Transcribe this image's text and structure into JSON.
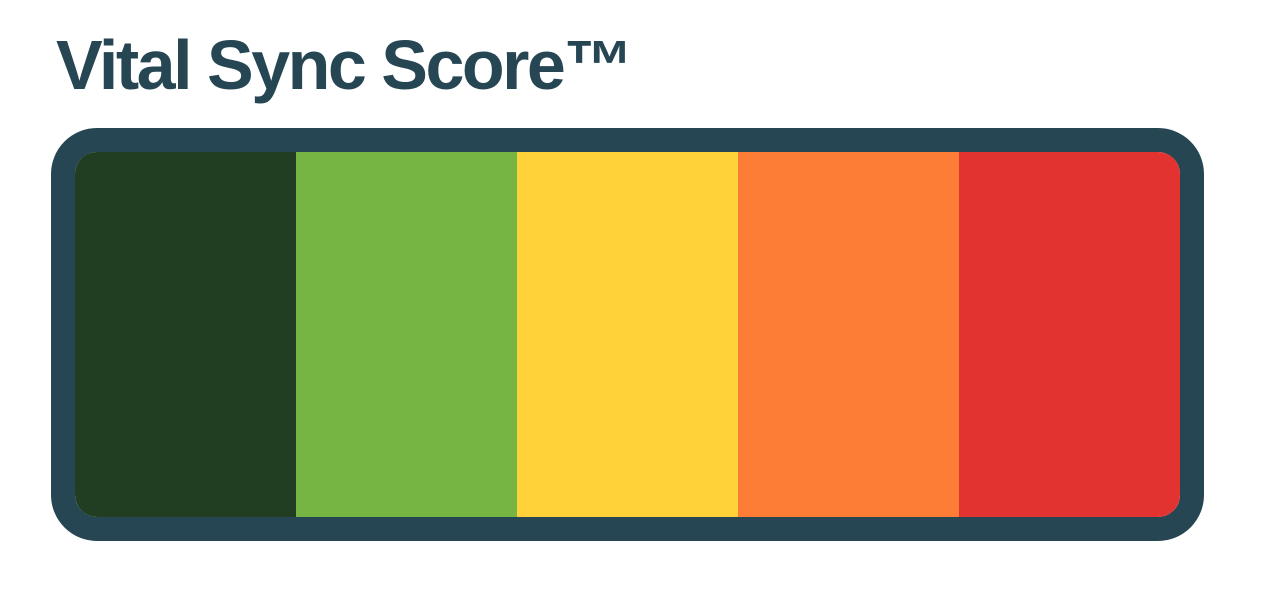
{
  "page": {
    "title": "Vital Sync Score™"
  },
  "colors": {
    "title": "#264653",
    "gauge_border": "#264653",
    "background": "#ffffff"
  },
  "gauge": {
    "segments": [
      {
        "name": "dark-green",
        "color": "#213E23"
      },
      {
        "name": "green",
        "color": "#76B444"
      },
      {
        "name": "yellow",
        "color": "#FFD23A"
      },
      {
        "name": "orange",
        "color": "#FD7D37"
      },
      {
        "name": "red",
        "color": "#E23330"
      }
    ]
  }
}
